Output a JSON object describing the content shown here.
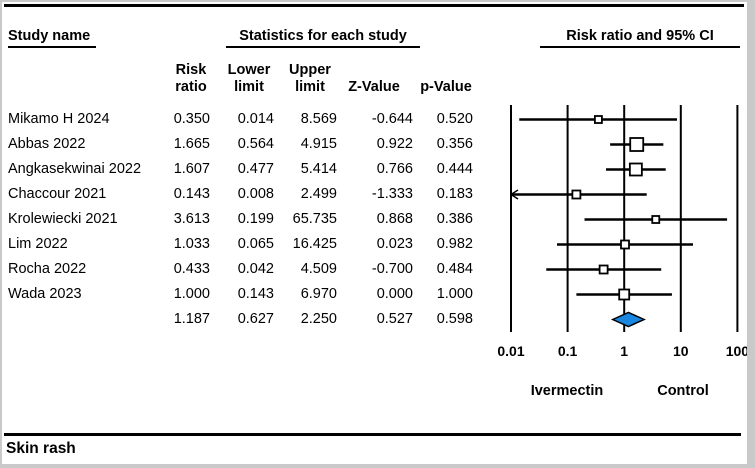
{
  "header": {
    "study_col_title": "Study name",
    "stats_title": "Statistics for each study",
    "plot_title": "Risk ratio and 95% CI"
  },
  "columns": {
    "risk": [
      "Risk",
      "ratio"
    ],
    "lower": [
      "Lower",
      "limit"
    ],
    "upper": [
      "Upper",
      "limit"
    ],
    "z": [
      "Z-Value"
    ],
    "p": [
      "p-Value"
    ]
  },
  "table": {
    "rows": [
      {
        "study": "Mikamo H 2024",
        "risk_ratio": "0.350",
        "lower": "0.014",
        "upper": "8.569",
        "z": "-0.644",
        "p": "0.520"
      },
      {
        "study": "Abbas 2022",
        "risk_ratio": "1.665",
        "lower": "0.564",
        "upper": "4.915",
        "z": "0.922",
        "p": "0.356"
      },
      {
        "study": "Angkasekwinai 2022",
        "risk_ratio": "1.607",
        "lower": "0.477",
        "upper": "5.414",
        "z": "0.766",
        "p": "0.444"
      },
      {
        "study": "Chaccour 2021",
        "risk_ratio": "0.143",
        "lower": "0.008",
        "upper": "2.499",
        "z": "-1.333",
        "p": "0.183"
      },
      {
        "study": "Krolewiecki 2021",
        "risk_ratio": "3.613",
        "lower": "0.199",
        "upper": "65.735",
        "z": "0.868",
        "p": "0.386"
      },
      {
        "study": "Lim 2022",
        "risk_ratio": "1.033",
        "lower": "0.065",
        "upper": "16.425",
        "z": "0.023",
        "p": "0.982"
      },
      {
        "study": "Rocha 2022",
        "risk_ratio": "0.433",
        "lower": "0.042",
        "upper": "4.509",
        "z": "-0.700",
        "p": "0.484"
      },
      {
        "study": "Wada 2023",
        "risk_ratio": "1.000",
        "lower": "0.143",
        "upper": "6.970",
        "z": "0.000",
        "p": "1.000"
      }
    ],
    "summary_row": {
      "study": "",
      "risk_ratio": "1.187",
      "lower": "0.627",
      "upper": "2.250",
      "z": "0.527",
      "p": "0.598"
    }
  },
  "chart_data": {
    "type": "forest",
    "x_scale": "log",
    "xlim": [
      0.01,
      100
    ],
    "x_ticks": [
      0.01,
      0.1,
      1,
      10,
      100
    ],
    "x_tick_labels": [
      "0.01",
      "0.1",
      "1",
      "10",
      "100"
    ],
    "left_label": "Ivermectin",
    "right_label": "Control",
    "title": "Risk ratio and 95% CI",
    "studies": [
      {
        "name": "Mikamo H 2024",
        "risk_ratio": 0.35,
        "lower": 0.014,
        "upper": 8.569,
        "z": -0.644,
        "p": 0.52,
        "marker_size": 7
      },
      {
        "name": "Abbas 2022",
        "risk_ratio": 1.665,
        "lower": 0.564,
        "upper": 4.915,
        "z": 0.922,
        "p": 0.356,
        "marker_size": 13
      },
      {
        "name": "Angkasekwinai 2022",
        "risk_ratio": 1.607,
        "lower": 0.477,
        "upper": 5.414,
        "z": 0.766,
        "p": 0.444,
        "marker_size": 12
      },
      {
        "name": "Chaccour 2021",
        "risk_ratio": 0.143,
        "lower": 0.008,
        "upper": 2.499,
        "z": -1.333,
        "p": 0.183,
        "marker_size": 8
      },
      {
        "name": "Krolewiecki 2021",
        "risk_ratio": 3.613,
        "lower": 0.199,
        "upper": 65.735,
        "z": 0.868,
        "p": 0.386,
        "marker_size": 7
      },
      {
        "name": "Lim 2022",
        "risk_ratio": 1.033,
        "lower": 0.065,
        "upper": 16.425,
        "z": 0.023,
        "p": 0.982,
        "marker_size": 8
      },
      {
        "name": "Rocha 2022",
        "risk_ratio": 0.433,
        "lower": 0.042,
        "upper": 4.509,
        "z": -0.7,
        "p": 0.484,
        "marker_size": 8
      },
      {
        "name": "Wada 2023",
        "risk_ratio": 1.0,
        "lower": 0.143,
        "upper": 6.97,
        "z": 0.0,
        "p": 1.0,
        "marker_size": 10
      }
    ],
    "summary": {
      "risk_ratio": 1.187,
      "lower": 0.627,
      "upper": 2.25,
      "z": 0.527,
      "p": 0.598,
      "shape": "diamond",
      "color": "#1986e0"
    },
    "marker_fill": "#ffffff",
    "line_color": "#000000"
  },
  "footer": {
    "outcome_label": "Skin rash"
  }
}
